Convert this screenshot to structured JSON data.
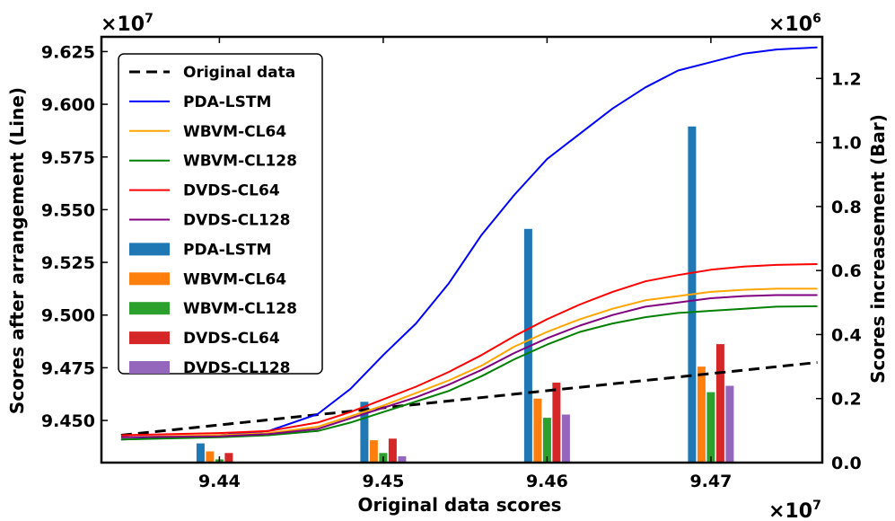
{
  "chart_data": {
    "type": "bar+line",
    "xlabel": "Original data scores",
    "ylabel_left": "Scores after arrangement (Line)",
    "ylabel_right": "Scores increasement (Bar)",
    "x_multiplier": "×10",
    "x_exponent": "7",
    "yl_multiplier": "×10",
    "yl_exponent": "7",
    "yr_multiplier": "×10",
    "yr_exponent": "6",
    "xlim": [
      9.4328,
      9.4768
    ],
    "ylim_left": [
      9.43,
      9.632
    ],
    "ylim_right": [
      0.0,
      1.33
    ],
    "x_ticks": [
      9.44,
      9.45,
      9.46,
      9.47
    ],
    "x_tick_labels": [
      "9.44",
      "9.45",
      "9.46",
      "9.47"
    ],
    "yl_ticks": [
      9.45,
      9.475,
      9.5,
      9.525,
      9.55,
      9.575,
      9.6,
      9.625
    ],
    "yl_tick_labels": [
      "9.450",
      "9.475",
      "9.500",
      "9.525",
      "9.550",
      "9.575",
      "9.600",
      "9.625"
    ],
    "yr_ticks": [
      0.0,
      0.2,
      0.4,
      0.6,
      0.8,
      1.0,
      1.2
    ],
    "yr_tick_labels": [
      "0.0",
      "0.2",
      "0.4",
      "0.6",
      "0.8",
      "1.0",
      "1.2"
    ],
    "line_series": [
      {
        "name": "Original data",
        "color": "#000000",
        "dashed": true,
        "x": [
          9.434,
          9.4765
        ],
        "y": [
          9.443,
          9.4775
        ]
      },
      {
        "name": "PDA-LSTM",
        "color": "#0000ff",
        "dashed": false,
        "x": [
          9.434,
          9.438,
          9.44,
          9.443,
          9.446,
          9.448,
          9.45,
          9.452,
          9.454,
          9.456,
          9.458,
          9.46,
          9.462,
          9.464,
          9.466,
          9.468,
          9.47,
          9.472,
          9.474,
          9.4765
        ],
        "y": [
          9.441,
          9.442,
          9.443,
          9.445,
          9.453,
          9.465,
          9.481,
          9.496,
          9.515,
          9.538,
          9.557,
          9.574,
          9.586,
          9.598,
          9.608,
          9.616,
          9.62,
          9.624,
          9.626,
          9.627
        ]
      },
      {
        "name": "WBVM-CL64",
        "color": "#ffa500",
        "dashed": false,
        "x": [
          9.434,
          9.44,
          9.443,
          9.446,
          9.448,
          9.45,
          9.452,
          9.454,
          9.456,
          9.458,
          9.46,
          9.462,
          9.464,
          9.466,
          9.468,
          9.47,
          9.472,
          9.474,
          9.4765
        ],
        "y": [
          9.442,
          9.443,
          9.444,
          9.447,
          9.452,
          9.457,
          9.463,
          9.469,
          9.476,
          9.485,
          9.492,
          9.498,
          9.503,
          9.507,
          9.509,
          9.511,
          9.512,
          9.5125,
          9.5125
        ]
      },
      {
        "name": "WBVM-CL128",
        "color": "#008000",
        "dashed": false,
        "x": [
          9.434,
          9.44,
          9.443,
          9.446,
          9.448,
          9.45,
          9.452,
          9.454,
          9.456,
          9.458,
          9.46,
          9.462,
          9.464,
          9.466,
          9.468,
          9.47,
          9.472,
          9.474,
          9.4765
        ],
        "y": [
          9.441,
          9.442,
          9.443,
          9.445,
          9.449,
          9.454,
          9.459,
          9.464,
          9.471,
          9.479,
          9.486,
          9.492,
          9.496,
          9.499,
          9.501,
          9.502,
          9.503,
          9.504,
          9.5042
        ]
      },
      {
        "name": "DVDS-CL64",
        "color": "#ff0000",
        "dashed": false,
        "x": [
          9.434,
          9.44,
          9.443,
          9.446,
          9.448,
          9.45,
          9.452,
          9.454,
          9.456,
          9.458,
          9.46,
          9.462,
          9.464,
          9.466,
          9.468,
          9.47,
          9.472,
          9.474,
          9.4765
        ],
        "y": [
          9.443,
          9.444,
          9.445,
          9.449,
          9.454,
          9.46,
          9.466,
          9.473,
          9.481,
          9.49,
          9.498,
          9.505,
          9.511,
          9.516,
          9.519,
          9.5215,
          9.523,
          9.5238,
          9.5242
        ]
      },
      {
        "name": "DVDS-CL128",
        "color": "#800080",
        "dashed": false,
        "x": [
          9.434,
          9.44,
          9.443,
          9.446,
          9.448,
          9.45,
          9.452,
          9.454,
          9.456,
          9.458,
          9.46,
          9.462,
          9.464,
          9.466,
          9.468,
          9.47,
          9.472,
          9.474,
          9.4765
        ],
        "y": [
          9.442,
          9.4425,
          9.4435,
          9.446,
          9.451,
          9.456,
          9.461,
          9.467,
          9.474,
          9.482,
          9.489,
          9.495,
          9.5,
          9.504,
          9.506,
          9.508,
          9.509,
          9.5095,
          9.5095
        ]
      }
    ],
    "bar_groups": [
      9.44,
      9.45,
      9.46,
      9.47
    ],
    "bar_series": [
      {
        "name": "PDA-LSTM",
        "color": "#1f77b4",
        "values": [
          0.06,
          0.19,
          0.73,
          1.05
        ]
      },
      {
        "name": "WBVM-CL64",
        "color": "#ff7f0e",
        "values": [
          0.035,
          0.07,
          0.2,
          0.3
        ]
      },
      {
        "name": "WBVM-CL128",
        "color": "#2ca02c",
        "values": [
          0.01,
          0.03,
          0.14,
          0.22
        ]
      },
      {
        "name": "DVDS-CL64",
        "color": "#d62728",
        "values": [
          0.03,
          0.075,
          0.25,
          0.37
        ]
      },
      {
        "name": "DVDS-CL128",
        "color": "#9467bd",
        "values": [
          0.0,
          0.02,
          0.15,
          0.24
        ]
      }
    ],
    "legend_position": "top-left"
  }
}
